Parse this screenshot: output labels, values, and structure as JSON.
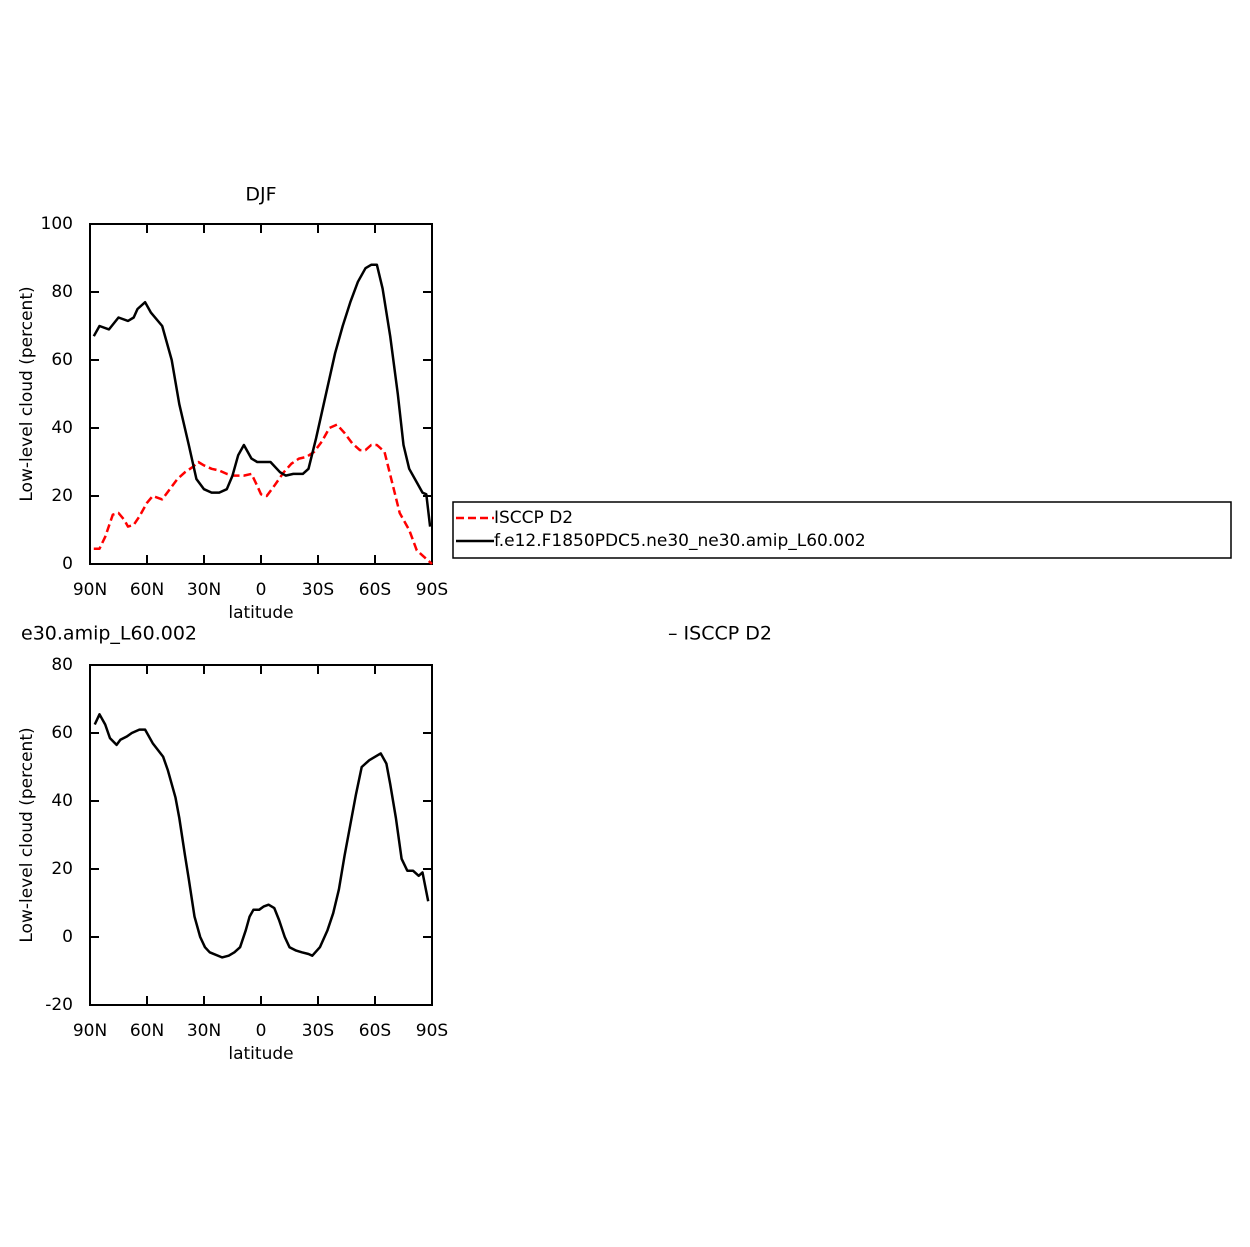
{
  "chart_data": [
    {
      "type": "line",
      "title": "DJF",
      "xlabel": "latitude",
      "ylabel": "Low-level cloud (percent)",
      "xlim": [
        90,
        -90
      ],
      "xticks": [
        {
          "value": 90,
          "label": "90N"
        },
        {
          "value": 60,
          "label": "60N"
        },
        {
          "value": 30,
          "label": "30N"
        },
        0,
        {
          "value": -30,
          "label": "30S"
        },
        {
          "value": -60,
          "label": "60S"
        },
        {
          "value": -90,
          "label": "90S"
        }
      ],
      "ylim": [
        0,
        100
      ],
      "yticks": [
        0,
        20,
        40,
        60,
        80,
        100
      ],
      "legend": "right",
      "series": [
        {
          "name": "ISCCP D2",
          "color": "#ff0000",
          "style": "dashed",
          "x": [
            88,
            85,
            82,
            78,
            75,
            72,
            70,
            67,
            64,
            60,
            57,
            52,
            48,
            44,
            40,
            36,
            33,
            30,
            26,
            22,
            18,
            14,
            9,
            5,
            2,
            0,
            -3,
            -7,
            -12,
            -16,
            -20,
            -24,
            -28,
            -32,
            -36,
            -40,
            -44,
            -48,
            -52,
            -55,
            -58,
            -61,
            -65,
            -69,
            -73,
            -78,
            -82,
            -86,
            -90
          ],
          "values": [
            4.5,
            4.5,
            8,
            14.5,
            15,
            13,
            11,
            11.5,
            14,
            18,
            20,
            19,
            22,
            25,
            27,
            28.5,
            30,
            29,
            28,
            27.5,
            26.5,
            26,
            26,
            26.5,
            23,
            20.5,
            20,
            23,
            27,
            29.5,
            31,
            31.5,
            33,
            36,
            40,
            41,
            38.5,
            35.5,
            33.5,
            33.5,
            35,
            35,
            33,
            24,
            15,
            10,
            4,
            2,
            0
          ]
        },
        {
          "name": "f.e12.F1850PDC5.ne30_ne30.amip_L60.002",
          "color": "#000000",
          "style": "solid",
          "x": [
            88,
            85,
            80,
            75,
            70,
            67,
            65,
            61,
            58,
            52,
            47,
            43,
            38,
            34,
            30,
            26,
            22,
            18,
            15,
            12,
            9,
            5,
            2,
            -2,
            -5,
            -10,
            -13,
            -17,
            -22,
            -25,
            -29,
            -35,
            -39,
            -43,
            -47,
            -51,
            -55,
            -58,
            -61,
            -64,
            -68,
            -72,
            -75,
            -78,
            -82,
            -85,
            -87,
            -89
          ],
          "values": [
            67,
            70,
            69,
            72.5,
            71.5,
            72.5,
            75,
            77,
            74,
            70,
            60,
            47,
            35,
            25,
            22,
            21,
            21,
            22,
            26,
            32,
            35,
            31,
            30,
            30,
            30,
            27,
            26,
            26.5,
            26.5,
            28,
            37,
            52,
            62,
            70,
            77,
            83,
            87,
            88,
            88,
            81,
            67,
            50,
            35,
            28,
            24,
            21,
            20.5,
            11
          ]
        }
      ]
    },
    {
      "type": "line",
      "title": "e30.amip_L60.002",
      "subtitle": "– ISCCP D2",
      "xlabel": "latitude",
      "ylabel": "Low-level cloud (percent)",
      "xlim": [
        90,
        -90
      ],
      "xticks": [
        {
          "value": 90,
          "label": "90N"
        },
        {
          "value": 60,
          "label": "60N"
        },
        {
          "value": 30,
          "label": "30N"
        },
        0,
        {
          "value": -30,
          "label": "30S"
        },
        {
          "value": -60,
          "label": "60S"
        },
        {
          "value": -90,
          "label": "90S"
        }
      ],
      "ylim": [
        -20,
        80
      ],
      "yticks": [
        -20,
        0,
        20,
        40,
        60,
        80
      ],
      "color": "#000000",
      "x": [
        87.5,
        85,
        82,
        79.5,
        76,
        74,
        70.5,
        68,
        64,
        61,
        57,
        51.5,
        49,
        45,
        43,
        40,
        38,
        35,
        32,
        29.5,
        27,
        20.5,
        17,
        14,
        11,
        8,
        6,
        4,
        1,
        -1.5,
        -4,
        -7,
        -9.5,
        -12.5,
        -15,
        -18.5,
        -21.5,
        -25,
        -27,
        -31,
        -35,
        -38,
        -41,
        -44,
        -47,
        -50,
        -53,
        -57,
        -60,
        -63,
        -66,
        -68,
        -71,
        -74,
        -77,
        -80,
        -83,
        -85,
        -88
      ],
      "values": [
        62.5,
        65.5,
        62.5,
        58.5,
        56.5,
        58,
        59,
        60,
        61,
        61,
        57,
        53,
        49,
        41,
        35,
        24,
        17,
        6,
        0,
        -3,
        -4.5,
        -6,
        -5.5,
        -4.5,
        -3,
        2,
        6,
        8,
        8,
        9,
        9.5,
        8.5,
        5,
        0,
        -3,
        -4,
        -4.5,
        -5,
        -5.5,
        -3,
        2,
        7,
        14,
        24,
        33,
        42,
        50,
        52,
        53,
        54,
        51,
        45,
        35,
        23,
        19.5,
        19.5,
        18,
        19,
        10.5
      ]
    }
  ]
}
